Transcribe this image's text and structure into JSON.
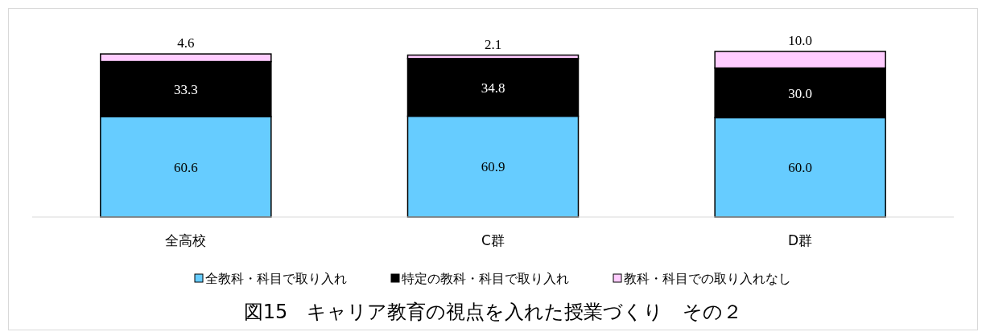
{
  "chart_data": {
    "type": "bar",
    "stacked": true,
    "title": "図15　キャリア教育の視点を入れた授業づくり　その２",
    "categories": [
      "全高校",
      "C群",
      "D群"
    ],
    "series": [
      {
        "name": "全教科・科目で取り入れ",
        "color": "#66ccff",
        "values": [
          60.6,
          60.9,
          60.0
        ],
        "value_labels": [
          "60.6",
          "60.9",
          "60.0"
        ]
      },
      {
        "name": "特定の教科・科目で取り入れ",
        "color": "#000000",
        "values": [
          33.3,
          34.8,
          30.0
        ],
        "value_labels": [
          "33.3",
          "34.8",
          "30.0"
        ]
      },
      {
        "name": "教科・科目での取り入れなし",
        "color": "#ffccff",
        "values": [
          4.6,
          2.1,
          10.0
        ],
        "value_labels": [
          "4.6",
          "2.1",
          "10.0"
        ]
      }
    ],
    "ylim": [
      0,
      100
    ],
    "legend": "bottom"
  }
}
